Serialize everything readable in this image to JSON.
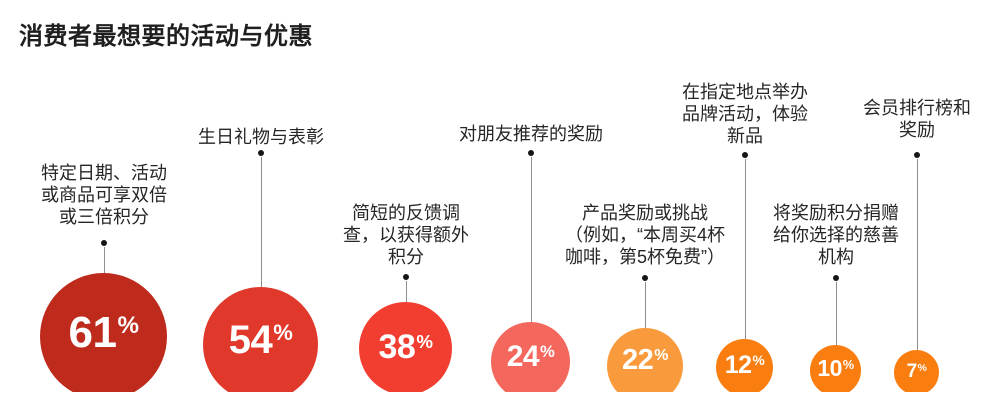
{
  "title": "消费者最想要的活动与优惠",
  "percent_symbol": "%",
  "chart_data": {
    "type": "bar",
    "variant": "proportional-area-circles",
    "title": "消费者最想要的活动与优惠",
    "unit": "%",
    "value_range": [
      0,
      100
    ],
    "grid": false,
    "legend": false,
    "categories": [
      "特定日期、活动或商品可享双倍或三倍积分",
      "生日礼物与表彰",
      "简短的反馈调查，以获得额外积分",
      "对朋友推荐的奖励",
      "产品奖励或挑战（例如，“本周买4杯咖啡，第5杯免费”）",
      "在指定地点举办品牌活动，体验新品",
      "将奖励积分捐赠给你选择的慈善机构",
      "会员排行榜和奖励"
    ],
    "values": [
      61,
      54,
      38,
      24,
      22,
      12,
      10,
      7
    ],
    "items": [
      {
        "label": "特定日期、活动\n或商品可享双倍\n或三倍积分",
        "value": 61,
        "color": "#BE2A1C"
      },
      {
        "label": "生日礼物与表彰",
        "value": 54,
        "color": "#E0392B"
      },
      {
        "label": "简短的反馈调\n查，以获得额外\n积分",
        "value": 38,
        "color": "#F23E30"
      },
      {
        "label": "对朋友推荐的奖励",
        "value": 24,
        "color": "#F4675D"
      },
      {
        "label": "产品奖励或挑战\n（例如，“本周买4杯\n咖啡，第5杯免费”）",
        "value": 22,
        "color": "#F99B3C"
      },
      {
        "label": "在指定地点举办\n品牌活动，体验\n新品",
        "value": 12,
        "color": "#F97D0F"
      },
      {
        "label": "将奖励积分捐赠\n给你选择的慈善\n机构",
        "value": 10,
        "color": "#F97D0F"
      },
      {
        "label": "会员排行榜和\n奖励",
        "value": 7,
        "color": "#F97D0F"
      }
    ]
  }
}
